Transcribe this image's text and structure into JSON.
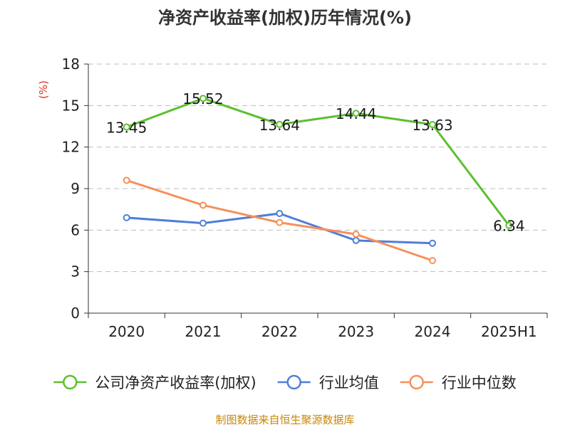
{
  "chart_data": {
    "type": "line",
    "title": "净资产收益率(加权)历年情况(%)",
    "y_unit": "(%)",
    "categories": [
      "2020",
      "2021",
      "2022",
      "2023",
      "2024",
      "2025H1"
    ],
    "ylim": [
      0,
      18
    ],
    "yticks": [
      0,
      3,
      6,
      9,
      12,
      15,
      18
    ],
    "grid": true,
    "legend_position": "bottom",
    "series": [
      {
        "name": "公司净资产收益率(加权)",
        "color": "#5cc02e",
        "values": [
          13.45,
          15.52,
          13.64,
          14.44,
          13.63,
          6.34
        ],
        "data_labels": [
          "13.45",
          "15.52",
          "13.64",
          "14.44",
          "13.63",
          "6.34"
        ]
      },
      {
        "name": "行业均值",
        "color": "#4f7ed8",
        "values": [
          6.9,
          6.5,
          7.2,
          5.25,
          5.05,
          null
        ],
        "data_labels": []
      },
      {
        "name": "行业中位数",
        "color": "#f6905a",
        "values": [
          9.6,
          7.8,
          6.55,
          5.7,
          3.8,
          null
        ],
        "data_labels": []
      }
    ],
    "source_note": "制图数据来自恒生聚源数据库"
  }
}
